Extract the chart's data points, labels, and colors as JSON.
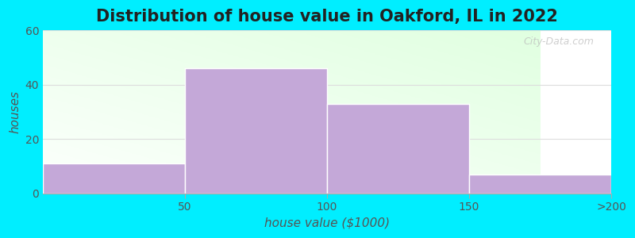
{
  "title": "Distribution of house value in Oakford, IL in 2022",
  "xlabel": "house value ($1000)",
  "ylabel": "houses",
  "tick_labels": [
    "50",
    "100",
    "150",
    ">200"
  ],
  "bar_labels": [
    "<50",
    "50-100",
    "100-150",
    ">200"
  ],
  "values": [
    11,
    46,
    33,
    7
  ],
  "bar_color": "#c4a8d8",
  "ylim": [
    0,
    60
  ],
  "yticks": [
    0,
    20,
    40,
    60
  ],
  "background_outer": "#00eeff",
  "grid_color": "#dddddd",
  "title_fontsize": 15,
  "label_fontsize": 11,
  "tick_fontsize": 10,
  "watermark": "City-Data.com"
}
